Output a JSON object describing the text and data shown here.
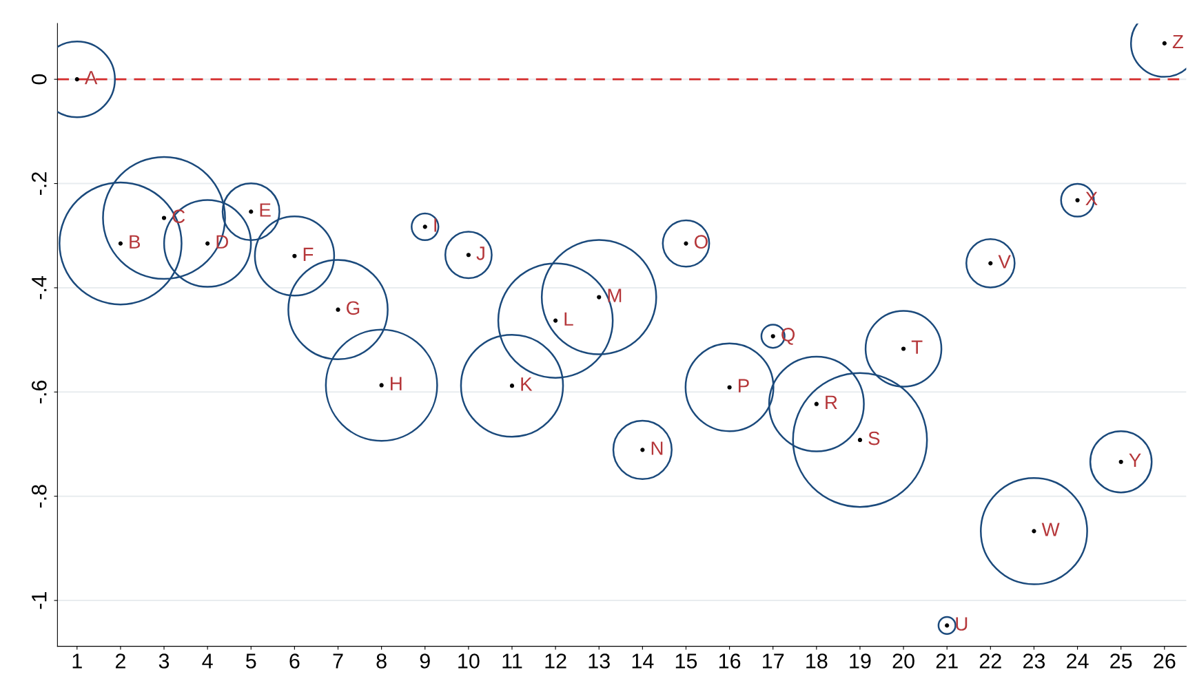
{
  "chart_data": {
    "type": "bubble",
    "categories": [
      "1",
      "2",
      "3",
      "4",
      "5",
      "6",
      "7",
      "8",
      "9",
      "10",
      "11",
      "12",
      "13",
      "14",
      "15",
      "16",
      "17",
      "18",
      "19",
      "20",
      "21",
      "22",
      "23",
      "24",
      "25",
      "26"
    ],
    "series": [
      {
        "color": "#1b4a7c",
        "values": [
          0,
          -0.315,
          -0.266,
          -0.315,
          -0.254,
          -0.339,
          -0.442,
          -0.587,
          -0.283,
          -0.337,
          -0.588,
          -0.463,
          -0.418,
          -0.711,
          -0.315,
          -0.591,
          -0.493,
          -0.623,
          -0.692,
          -0.517,
          -1.048,
          -0.353,
          -0.867,
          -0.232,
          -0.734,
          0.069
        ],
        "sizes": [
          0.32,
          0.83,
          0.83,
          0.42,
          0.18,
          0.35,
          0.55,
          0.69,
          0.04,
          0.12,
          0.58,
          0.73,
          0.73,
          0.19,
          0.12,
          0.43,
          0.03,
          0.5,
          1,
          0.32,
          0.016,
          0.13,
          0.63,
          0.06,
          0.21,
          0.25
        ],
        "value_labels": [
          "A",
          "B",
          "C",
          "D",
          "E",
          "F",
          "G",
          "H",
          "I",
          "J",
          "K",
          "L",
          "M",
          "N",
          "O",
          "P",
          "Q",
          "R",
          "S",
          "T",
          "U",
          "V",
          "W",
          "X",
          "Y",
          "Z"
        ]
      }
    ],
    "ylim": [
      -1.088,
      0.107
    ],
    "yticks": [
      {
        "value": -1,
        "label": "-1"
      },
      {
        "value": -0.8,
        "label": "-.8"
      },
      {
        "value": -0.6,
        "label": "-.6"
      },
      {
        "value": -0.4,
        "label": "-.4"
      },
      {
        "value": -0.2,
        "label": "-.2"
      },
      0
    ],
    "grid": "y",
    "ref_lines": [
      {
        "axis": "y",
        "value": 0,
        "color": "#d42a2a",
        "line_style": "dashed"
      }
    ]
  }
}
